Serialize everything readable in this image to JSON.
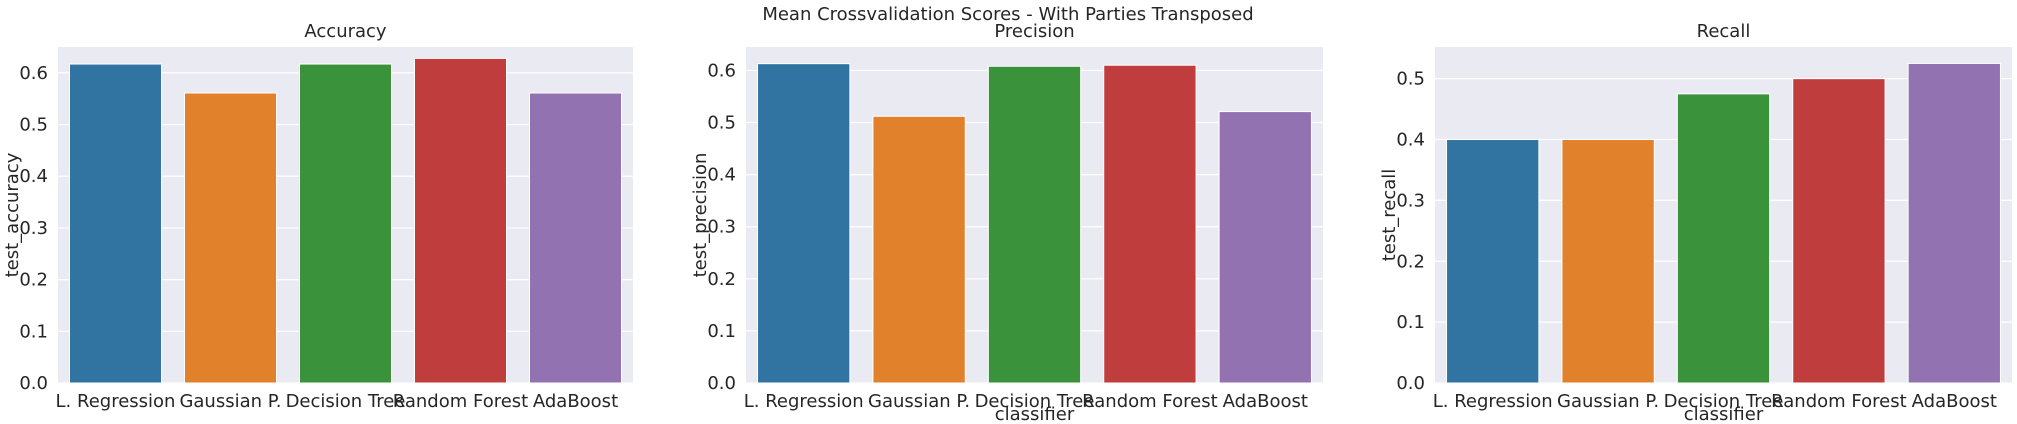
{
  "suptitle": "Mean Crossvalidation Scores - With Parties Transposed",
  "chart_data": [
    {
      "type": "bar",
      "title": "Accuracy",
      "xlabel": "",
      "ylabel": "test_accuracy",
      "categories": [
        "L. Regression",
        "Gaussian P.",
        "Decision Tree",
        "Random Forest",
        "AdaBoost"
      ],
      "values": [
        0.617,
        0.561,
        0.617,
        0.628,
        0.561
      ],
      "ylim": [
        0,
        0.65
      ],
      "yticks": [
        "0.0",
        "0.1",
        "0.2",
        "0.3",
        "0.4",
        "0.5",
        "0.6"
      ],
      "colors": [
        "#3274a1",
        "#e1812c",
        "#3a923a",
        "#c03d3e",
        "#9372b2"
      ],
      "grid": true
    },
    {
      "type": "bar",
      "title": "Precision",
      "xlabel": "classifier",
      "ylabel": "test_precision",
      "categories": [
        "L. Regression",
        "Gaussian P.",
        "Decision Tree",
        "Random Forest",
        "AdaBoost"
      ],
      "values": [
        0.613,
        0.512,
        0.608,
        0.61,
        0.521
      ],
      "ylim": [
        0,
        0.645
      ],
      "yticks": [
        "0.0",
        "0.1",
        "0.2",
        "0.3",
        "0.4",
        "0.5",
        "0.6"
      ],
      "colors": [
        "#3274a1",
        "#e1812c",
        "#3a923a",
        "#c03d3e",
        "#9372b2"
      ],
      "grid": true
    },
    {
      "type": "bar",
      "title": "Recall",
      "xlabel": "classifier",
      "ylabel": "test_recall",
      "categories": [
        "L. Regression",
        "Gaussian P.",
        "Decision Tree",
        "Random Forest",
        "AdaBoost"
      ],
      "values": [
        0.4,
        0.4,
        0.475,
        0.5,
        0.525
      ],
      "ylim": [
        0,
        0.552
      ],
      "yticks": [
        "0.0",
        "0.1",
        "0.2",
        "0.3",
        "0.4",
        "0.5"
      ],
      "colors": [
        "#3274a1",
        "#e1812c",
        "#3a923a",
        "#c03d3e",
        "#9372b2"
      ],
      "grid": true
    }
  ]
}
